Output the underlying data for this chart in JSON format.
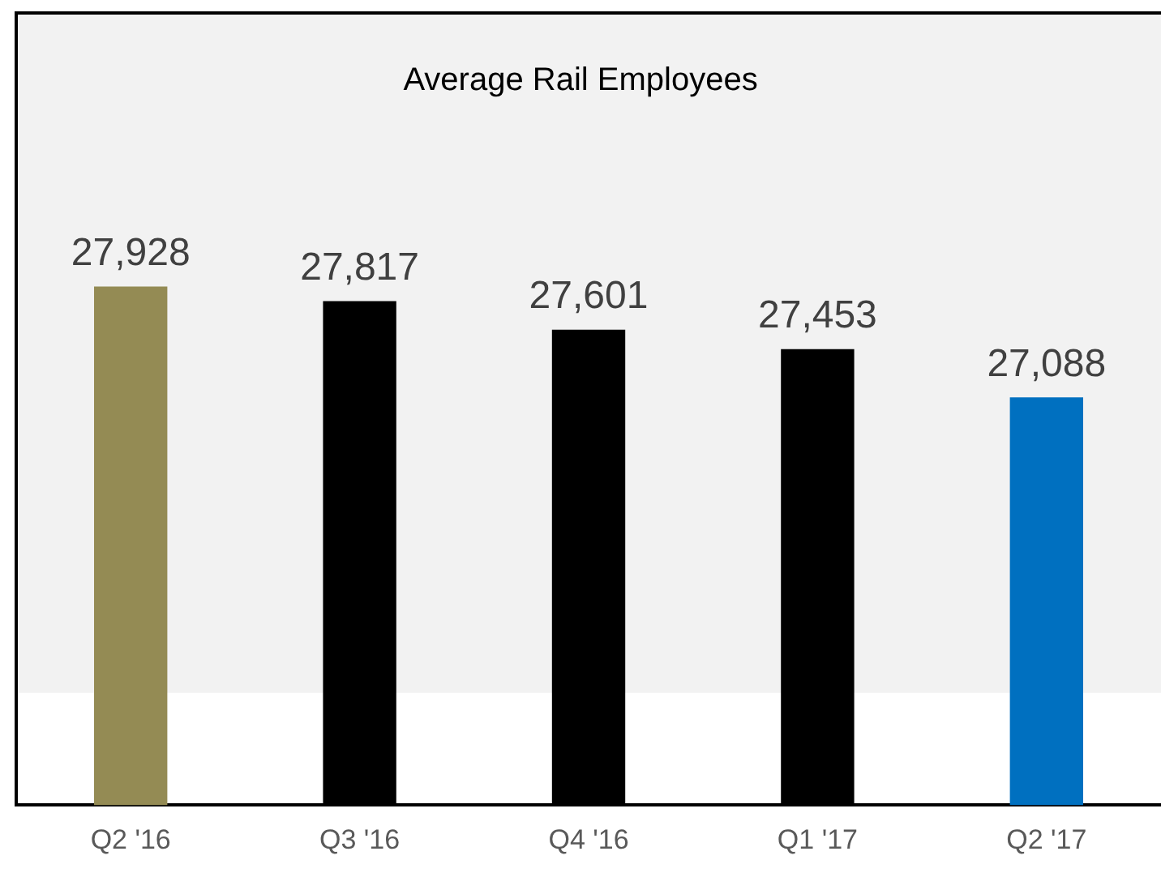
{
  "chart_data": {
    "type": "bar",
    "title": "Average Rail Employees",
    "categories": [
      "Q2 '16",
      "Q3 '16",
      "Q4 '16",
      "Q1 '17",
      "Q2 '17"
    ],
    "values": [
      27928,
      27817,
      27601,
      27453,
      27088
    ],
    "value_labels": [
      "27,928",
      "27,817",
      "27,601",
      "27,453",
      "27,088"
    ],
    "colors": [
      "#948b54",
      "#000000",
      "#000000",
      "#000000",
      "#0070c0"
    ],
    "bands": [
      {
        "axis": "y",
        "from": 24850,
        "to": 30000,
        "color": "#f2f2f2"
      }
    ],
    "ylim": [
      24000,
      30000
    ],
    "tick_labels": "x",
    "grid": false,
    "legend": false
  }
}
